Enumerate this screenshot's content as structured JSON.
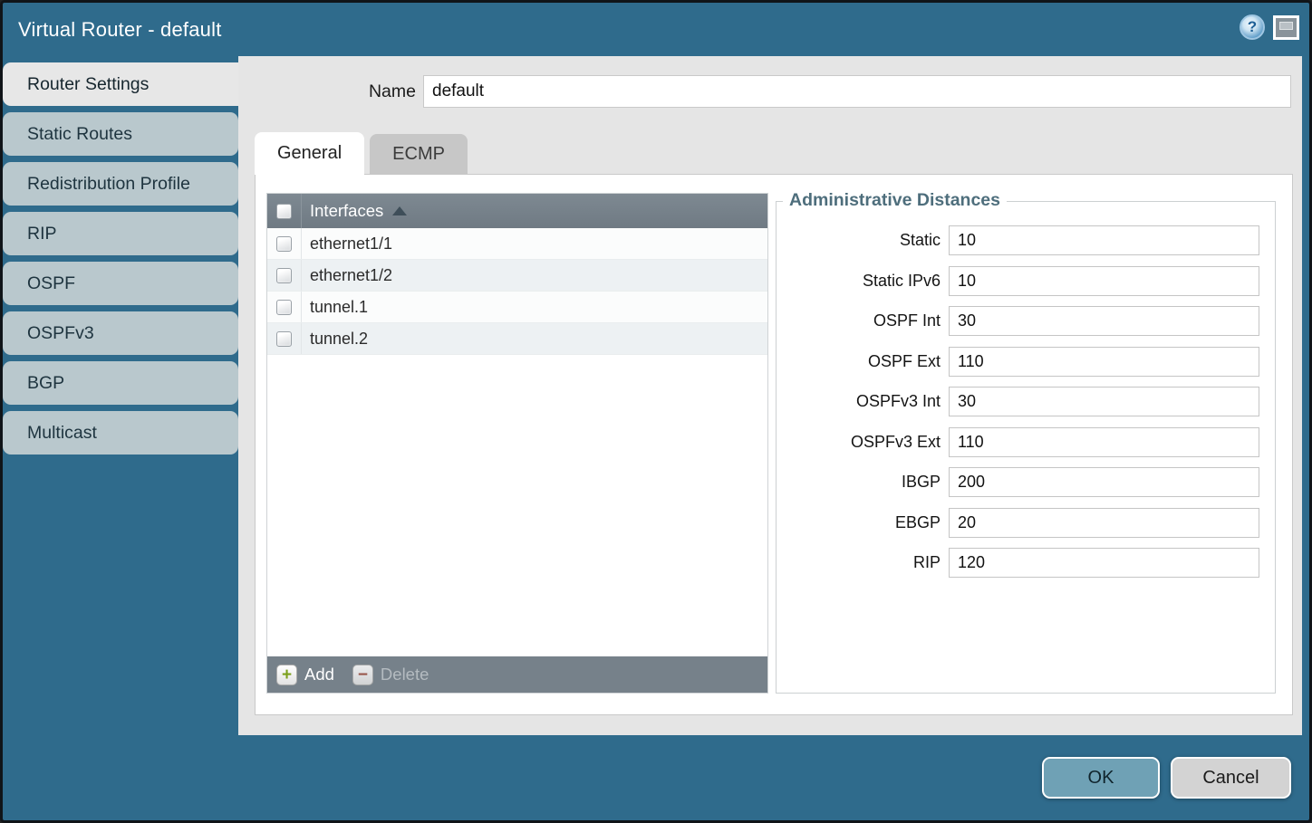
{
  "title_bar": {
    "title": "Virtual Router - default",
    "help_icon_glyph": "?"
  },
  "sidebar": {
    "items": [
      {
        "label": "Router Settings",
        "active": true
      },
      {
        "label": "Static Routes",
        "active": false
      },
      {
        "label": "Redistribution Profile",
        "active": false
      },
      {
        "label": "RIP",
        "active": false
      },
      {
        "label": "OSPF",
        "active": false
      },
      {
        "label": "OSPFv3",
        "active": false
      },
      {
        "label": "BGP",
        "active": false
      },
      {
        "label": "Multicast",
        "active": false
      }
    ]
  },
  "name_field": {
    "label": "Name",
    "value": "default"
  },
  "tabs": [
    {
      "label": "General",
      "active": true
    },
    {
      "label": "ECMP",
      "active": false
    }
  ],
  "interfaces": {
    "column_header": "Interfaces",
    "sort_state": "ascending",
    "rows": [
      "ethernet1/1",
      "ethernet1/2",
      "tunnel.1",
      "tunnel.2"
    ],
    "add_label": "Add",
    "add_icon_glyph": "+",
    "delete_label": "Delete",
    "delete_icon_glyph": "−",
    "delete_enabled": false
  },
  "admin_distances": {
    "legend": "Administrative Distances",
    "fields": [
      {
        "label": "Static",
        "value": "10"
      },
      {
        "label": "Static IPv6",
        "value": "10"
      },
      {
        "label": "OSPF Int",
        "value": "30"
      },
      {
        "label": "OSPF Ext",
        "value": "110"
      },
      {
        "label": "OSPFv3 Int",
        "value": "30"
      },
      {
        "label": "OSPFv3 Ext",
        "value": "110"
      },
      {
        "label": "IBGP",
        "value": "200"
      },
      {
        "label": "EBGP",
        "value": "20"
      },
      {
        "label": "RIP",
        "value": "120"
      }
    ]
  },
  "actions": {
    "ok_label": "OK",
    "cancel_label": "Cancel"
  },
  "colors": {
    "chrome_teal": "#2f6b8c",
    "sidebar_item": "#b9c8cd",
    "active_item": "#e7e7e7",
    "content_bg": "#e5e5e5",
    "grid_header": "#76818a",
    "ok_button": "#6fa1b5",
    "cancel_button": "#d3d3d3",
    "add_icon_green": "#7ba01c",
    "delete_icon_red": "#9e4f3e",
    "legend_text": "#4e6e7c"
  }
}
